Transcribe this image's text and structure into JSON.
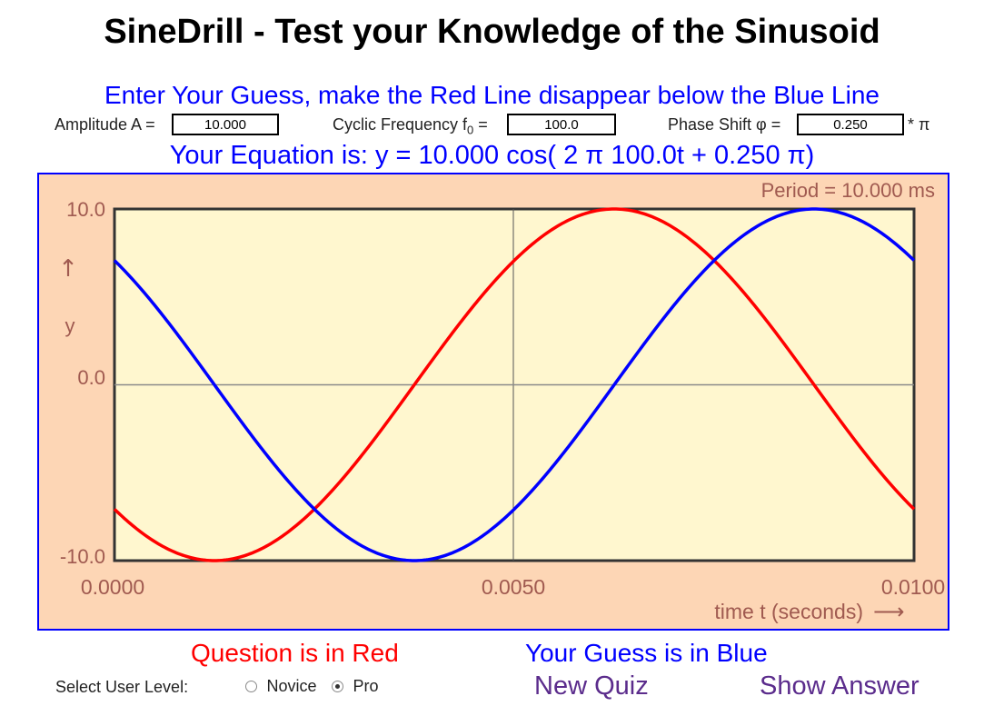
{
  "header": {
    "title": "SineDrill - Test your Knowledge of the Sinusoid"
  },
  "instructions": "Enter Your Guess, make the Red Line disappear below the Blue Line",
  "inputs": {
    "amplitude_label": "Amplitude A =",
    "amplitude_value": "10.000",
    "frequency_label_main": "Cyclic Frequency f",
    "frequency_label_sub": "0",
    "frequency_label_eq": "=",
    "frequency_value": "100.0",
    "phase_label": "Phase Shift φ =",
    "phase_value": "0.250",
    "phase_suffix": "* π"
  },
  "equation": "Your Equation is: y = 10.000 cos( 2 π 100.0t + 0.250 π)",
  "chart_data": {
    "type": "line",
    "period_label": "Period = 10.000 ms",
    "ylim": [
      -10.0,
      10.0
    ],
    "xlim": [
      0.0,
      0.01
    ],
    "y_ticks": [
      "10.0",
      "0.0",
      "-10.0"
    ],
    "x_ticks": [
      "0.0000",
      "0.0050",
      "0.0100"
    ],
    "y_axis_label": "y",
    "y_axis_arrow": "↑",
    "x_axis_label": "time t (seconds)",
    "x_axis_arrow": "⟶",
    "series": [
      {
        "amplitude": 10.0,
        "frequency": 100.0,
        "phase_pi": 0.75,
        "color": "#ff0000"
      },
      {
        "amplitude": 10.0,
        "frequency": 100.0,
        "phase_pi": 0.25,
        "color": "#0000ff"
      }
    ],
    "colors": {
      "plot_bg": "#fff7cf",
      "outer_bg": "#fdd6b5",
      "axis_text": "#a05a50"
    }
  },
  "legend": {
    "question_label": "Question is in Red",
    "guess_label": "Your Guess is in Blue",
    "question_color": "#ff0000",
    "guess_color": "#0000ff"
  },
  "user_level": {
    "label": "Select User Level:",
    "options": [
      {
        "label": "Novice",
        "selected": false
      },
      {
        "label": "Pro",
        "selected": true
      }
    ]
  },
  "actions": {
    "new_quiz": "New Quiz",
    "show_answer": "Show Answer"
  }
}
